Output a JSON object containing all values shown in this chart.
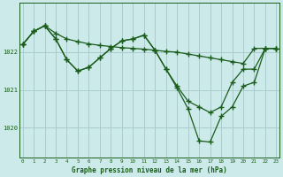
{
  "title": "Graphe pression niveau de la mer (hPa)",
  "background_color": "#cceaea",
  "grid_color": "#aacccc",
  "line_color": "#1a5c1a",
  "x_ticks": [
    0,
    1,
    2,
    3,
    4,
    5,
    6,
    7,
    8,
    9,
    10,
    11,
    12,
    13,
    14,
    15,
    16,
    17,
    18,
    19,
    20,
    21,
    22,
    23
  ],
  "y_ticks": [
    1020,
    1021,
    1022
  ],
  "ylim": [
    1019.2,
    1023.3
  ],
  "xlim": [
    -0.3,
    23.3
  ],
  "series": [
    [
      1022.2,
      1022.55,
      1022.7,
      1022.5,
      1022.35,
      1022.28,
      1022.22,
      1022.18,
      1022.15,
      1022.12,
      1022.1,
      1022.08,
      1022.05,
      1022.02,
      1022.0,
      1021.95,
      1021.9,
      1021.85,
      1021.8,
      1021.75,
      1021.7,
      1022.1,
      1022.1,
      1022.1
    ],
    [
      1022.2,
      1022.55,
      1022.7,
      1022.35,
      1021.8,
      1021.5,
      1021.6,
      1021.85,
      1022.1,
      1022.3,
      1022.35,
      1022.45,
      1022.05,
      1021.55,
      1021.1,
      1020.7,
      1020.55,
      1020.4,
      1020.55,
      1021.2,
      1021.55,
      1021.55,
      1022.1,
      1022.1
    ],
    [
      1022.2,
      1022.55,
      1022.7,
      1022.35,
      1021.8,
      1021.5,
      1021.6,
      1021.85,
      1022.1,
      1022.3,
      1022.35,
      1022.45,
      1022.05,
      1021.55,
      1021.05,
      1020.5,
      1019.65,
      1019.62,
      1020.3,
      1020.55,
      1021.1,
      1021.2,
      1022.1,
      1022.1
    ]
  ]
}
